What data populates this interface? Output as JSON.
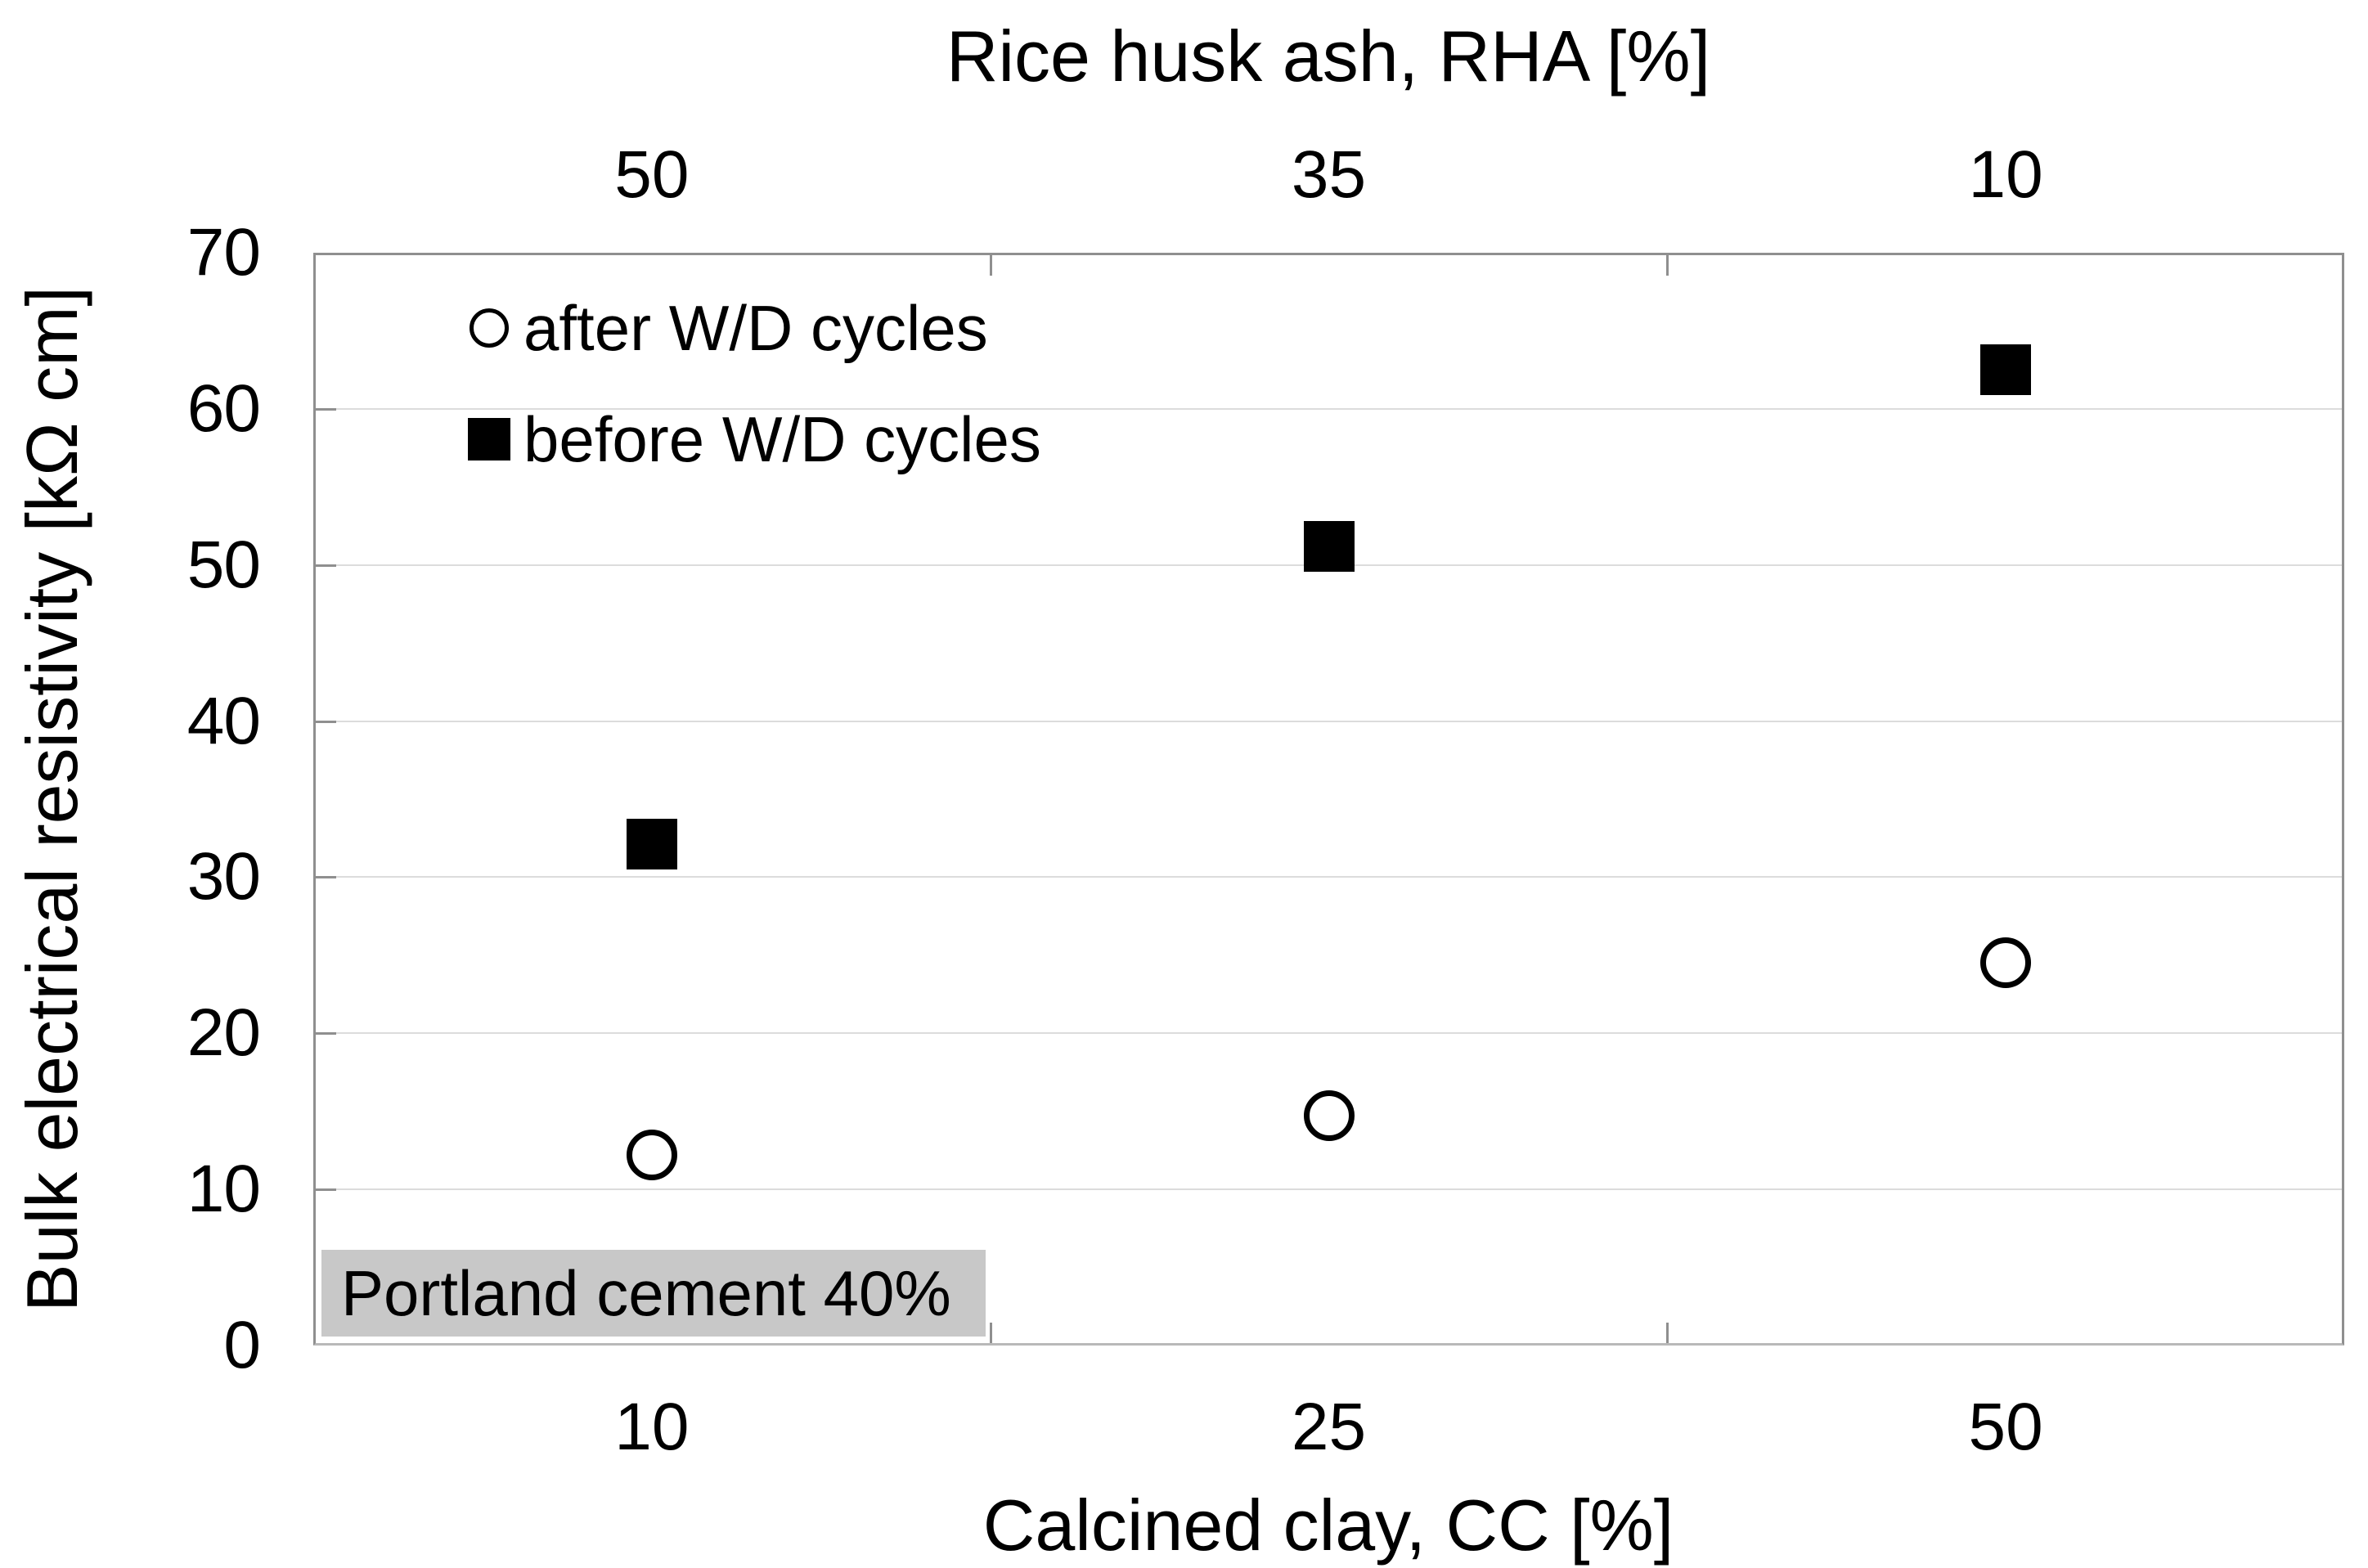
{
  "chart_data": {
    "type": "scatter",
    "title_top": "Rice husk ash, RHA [%]",
    "xlabel_bottom": "Calcined clay, CC [%]",
    "ylabel": "Bulk electrical resistivity [kΩ cm]",
    "categories_bottom": [
      "10",
      "25",
      "50"
    ],
    "categories_top": [
      "50",
      "35",
      "10"
    ],
    "y_ticks": [
      0,
      10,
      20,
      30,
      40,
      50,
      60,
      70
    ],
    "y_gridlines": [
      10,
      20,
      30,
      40,
      50,
      60
    ],
    "ylim": [
      0,
      70
    ],
    "grid": "horizontal-only",
    "legend_position": "top-left-inside",
    "legend": [
      {
        "marker": "circle-open",
        "label": "after W/D cycles"
      },
      {
        "marker": "square-filled",
        "label": "before W/D cycles"
      }
    ],
    "series": [
      {
        "name": "after W/D cycles",
        "marker": "circle-open",
        "values": [
          12.2,
          14.7,
          24.5
        ]
      },
      {
        "name": "before W/D cycles",
        "marker": "square-filled",
        "values": [
          32.1,
          51.2,
          62.5
        ]
      }
    ],
    "annotation": "Portland cement 40%"
  },
  "colors": {
    "marker": "#000000",
    "gridline": "#dcdcdc",
    "plot_border": "#8f8f8f",
    "annotation_bg": "#c8c8c8",
    "text": "#000000",
    "background": "#ffffff"
  }
}
